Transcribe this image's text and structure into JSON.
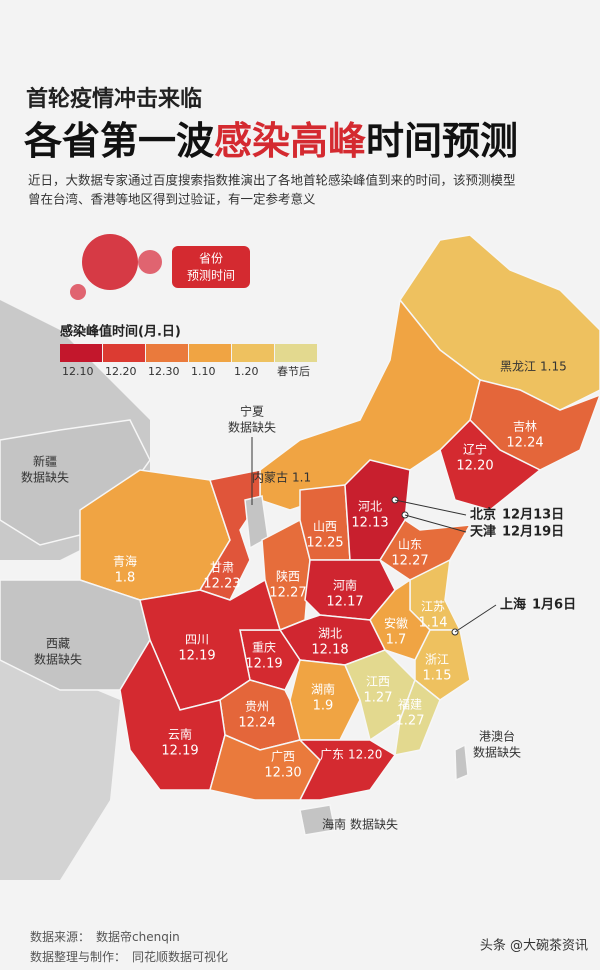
{
  "header": {
    "kicker": "首轮疫情冲击来临",
    "title_parts": [
      "各省第一波",
      "感染高峰",
      "时间预测"
    ],
    "intro_lines": [
      "近日，大数据专家通过百度搜索指数推演出了各地首轮感染峰值到来的时间，该预测模型",
      "曾在台湾、香港等地区得到过验证，有一定参考意义"
    ]
  },
  "badge": [
    "省份",
    "预测时间"
  ],
  "legend": {
    "title": "感染峰值时间(月.日)",
    "items": [
      {
        "label": "12.10",
        "color": "#c3172c"
      },
      {
        "label": "12.20",
        "color": "#dc3b32"
      },
      {
        "label": "12.30",
        "color": "#ea7a3c"
      },
      {
        "label": "1.10",
        "color": "#f0a443"
      },
      {
        "label": "1.20",
        "color": "#eec15f"
      },
      {
        "label": "春节后",
        "color": "#e3d98f"
      }
    ]
  },
  "regions": [
    {
      "name": "黑龙江",
      "date": "1.15",
      "color": "#eec15f"
    },
    {
      "name": "吉林",
      "date": "12.24",
      "color": "#e4663a"
    },
    {
      "name": "辽宁",
      "date": "12.20",
      "color": "#d42a30"
    },
    {
      "name": "内蒙古",
      "date": "1.1",
      "color": "#f0a443"
    },
    {
      "name": "新疆",
      "date": "数据缺失",
      "color": "#c4c4c4"
    },
    {
      "name": "青海",
      "date": "1.8",
      "color": "#f0a443"
    },
    {
      "name": "西藏",
      "date": "数据缺失",
      "color": "#c4c4c4"
    },
    {
      "name": "甘肃",
      "date": "12.23",
      "color": "#e0553a"
    },
    {
      "name": "宁夏",
      "date": "数据缺失",
      "color": "#c4c4c4"
    },
    {
      "name": "陕西",
      "date": "12.27",
      "color": "#e66d3b"
    },
    {
      "name": "山西",
      "date": "12.25",
      "color": "#e4663a"
    },
    {
      "name": "河北",
      "date": "12.13",
      "color": "#c81f2e"
    },
    {
      "name": "山东",
      "date": "12.27",
      "color": "#e66d3b"
    },
    {
      "name": "河南",
      "date": "12.17",
      "color": "#cf2530"
    },
    {
      "name": "江苏",
      "date": "1.14",
      "color": "#eec15f"
    },
    {
      "name": "安徽",
      "date": "1.7",
      "color": "#f0a443"
    },
    {
      "name": "浙江",
      "date": "1.15",
      "color": "#eec15f"
    },
    {
      "name": "湖北",
      "date": "12.18",
      "color": "#d02630"
    },
    {
      "name": "重庆",
      "date": "12.19",
      "color": "#d42a30"
    },
    {
      "name": "四川",
      "date": "12.19",
      "color": "#d42a30"
    },
    {
      "name": "湖南",
      "date": "1.9",
      "color": "#f0a443"
    },
    {
      "name": "江西",
      "date": "1.27",
      "color": "#e3d98f"
    },
    {
      "name": "福建",
      "date": "1.27",
      "color": "#e3d98f"
    },
    {
      "name": "贵州",
      "date": "12.24",
      "color": "#e4663a"
    },
    {
      "name": "云南",
      "date": "12.19",
      "color": "#d42a30"
    },
    {
      "name": "广西",
      "date": "12.30",
      "color": "#ea7a3c"
    },
    {
      "name": "广东",
      "date": "12.20",
      "color": "#d42a30"
    },
    {
      "name": "海南",
      "date": "数据缺失",
      "color": "#c4c4c4"
    },
    {
      "name": "港澳台",
      "date": "数据缺失",
      "color": "#c4c4c4"
    }
  ],
  "callouts": [
    {
      "name": "北京",
      "date": "12月13日"
    },
    {
      "name": "天津",
      "date": "12月19日"
    },
    {
      "name": "上海",
      "date": "1月6日"
    }
  ],
  "footer": {
    "source_label": "数据来源：",
    "source": "数据帝chenqin",
    "maker_label": "数据整理与制作：",
    "maker": "同花顺数据可视化"
  },
  "corner": "头条 @大碗茶资讯"
}
